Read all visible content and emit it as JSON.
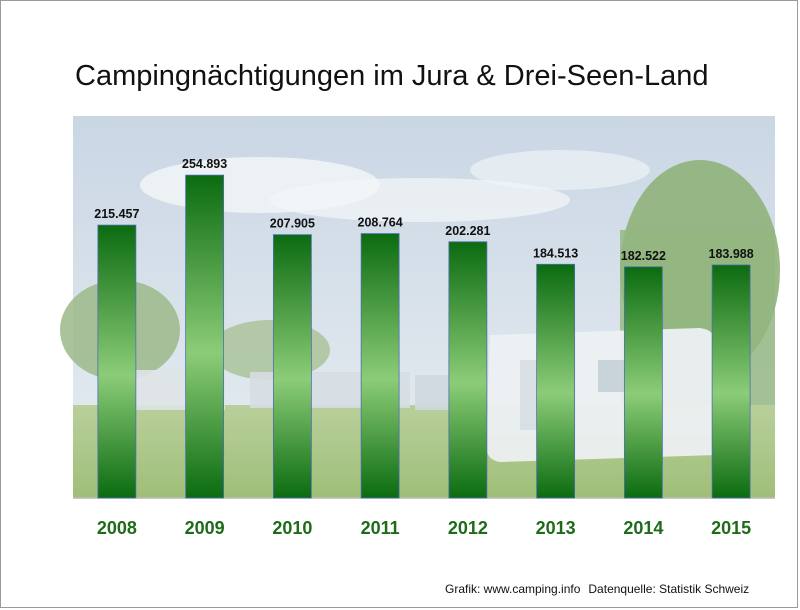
{
  "title": "Campingnächtigungen im Jura & Drei-Seen-Land",
  "source": {
    "grafik": "Grafik: www.camping.info",
    "datenquelle": "Datenquelle: Statistik Schweiz"
  },
  "colors": {
    "bar_dark": "#0b6b10",
    "bar_light": "#8ccc78",
    "year_label": "#1f6b1a"
  },
  "chart_data": {
    "type": "bar",
    "title": "Campingnächtigungen im Jura & Drei-Seen-Land",
    "xlabel": "",
    "ylabel": "",
    "categories": [
      "2008",
      "2009",
      "2010",
      "2011",
      "2012",
      "2013",
      "2014",
      "2015"
    ],
    "values": [
      215457,
      254893,
      207905,
      208764,
      202281,
      184513,
      182522,
      183988
    ],
    "value_labels": [
      "215.457",
      "254.893",
      "207.905",
      "208.764",
      "202.281",
      "184.513",
      "182.522",
      "183.988"
    ],
    "ylim": [
      0,
      300000
    ],
    "grid": false,
    "legend": "none",
    "background": "campsite photo"
  }
}
